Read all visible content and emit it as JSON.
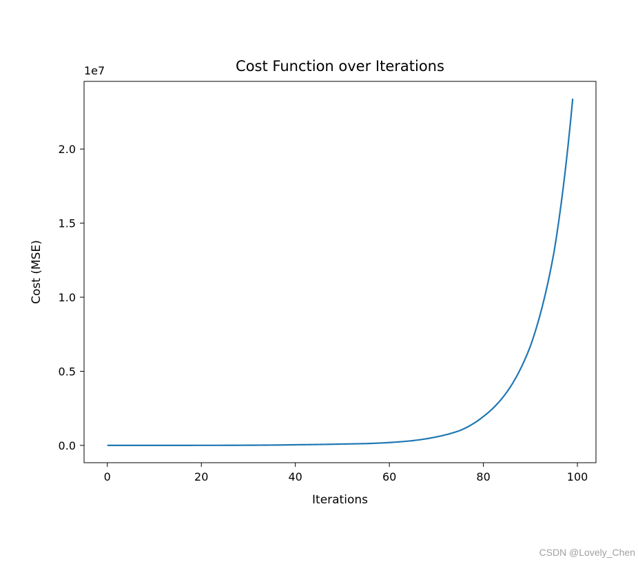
{
  "chart_data": {
    "type": "line",
    "title": "Cost Function over Iterations",
    "xlabel": "Iterations",
    "ylabel": "Cost (MSE)",
    "offset_label": "1e7",
    "xlim": [
      -4.95,
      103.95
    ],
    "ylim": [
      -1170000,
      24570000
    ],
    "xticks": [
      0,
      20,
      40,
      60,
      80,
      100
    ],
    "xtick_labels": [
      "0",
      "20",
      "40",
      "60",
      "80",
      "100"
    ],
    "yticks": [
      0,
      5000000,
      10000000,
      15000000,
      20000000
    ],
    "ytick_labels": [
      "0.0",
      "0.5",
      "1.0",
      "1.5",
      "2.0"
    ],
    "grid": false,
    "series": [
      {
        "color": "#1f77b4",
        "x": [
          0,
          10,
          20,
          30,
          40,
          45,
          50,
          55,
          60,
          65,
          70,
          75,
          80,
          85,
          90,
          95,
          99
        ],
        "y": [
          0,
          200,
          2000,
          10000,
          40000,
          60000,
          90000,
          120000,
          190000,
          320000,
          570000,
          1000000,
          1950000,
          3600000,
          6700000,
          13000000,
          23400000
        ]
      }
    ]
  },
  "watermark": "CSDN @Lovely_Chen"
}
